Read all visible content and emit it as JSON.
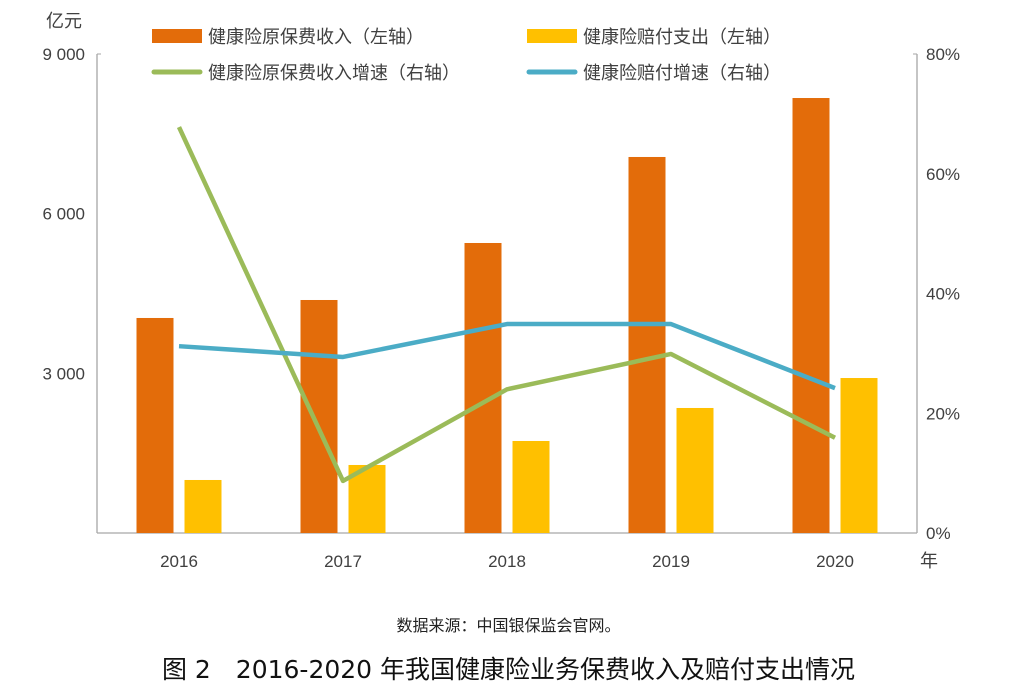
{
  "chart_data": {
    "type": "bar+line",
    "categories": [
      "2016",
      "2017",
      "2018",
      "2019",
      "2020"
    ],
    "xlabel": "年",
    "ylabel": "亿元",
    "ylim": [
      0,
      9000
    ],
    "yticks": [
      "3 000",
      "6 000",
      "9 000"
    ],
    "y2lim": [
      0,
      80
    ],
    "y2ticks": [
      "0%",
      "20%",
      "40%",
      "60%",
      "80%"
    ],
    "grid": false,
    "legend_position": "top",
    "series": [
      {
        "name": "健康险原保费收入（左轴）",
        "type": "bar",
        "axis": "left",
        "color": "#E36C0A",
        "values": [
          4040,
          4378,
          5449,
          7065,
          8173
        ]
      },
      {
        "name": "健康险赔付支出（左轴）",
        "type": "bar",
        "axis": "left",
        "color": "#FFC000",
        "values": [
          996,
          1278,
          1729,
          2349,
          2912
        ]
      },
      {
        "name": "健康险原保费收入增速（右轴）",
        "type": "line",
        "axis": "right",
        "color": "#9BBB59",
        "values": [
          67.8,
          8.7,
          24.0,
          29.9,
          15.9
        ]
      },
      {
        "name": "健康险赔付增速（右轴）",
        "type": "line",
        "axis": "right",
        "color": "#4BACC6",
        "values": [
          31.2,
          29.4,
          34.9,
          34.9,
          24.2
        ]
      }
    ]
  },
  "source_note": "数据来源：中国银保监会官网。",
  "caption": "图 2　2016-2020 年我国健康险业务保费收入及赔付支出情况"
}
